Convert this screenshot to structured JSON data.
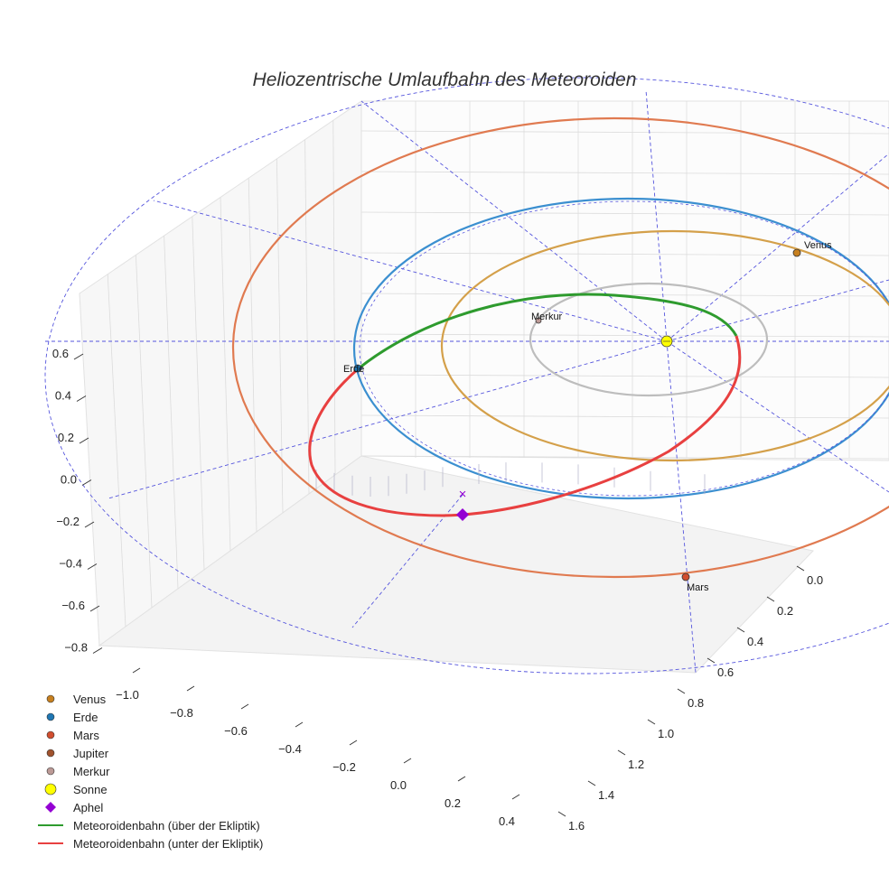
{
  "title": "Heliozentrische Umlaufbahn des Meteoroiden",
  "colors": {
    "venus": "#D4A04A",
    "earth": "#3B8FD0",
    "mars": "#E07A50",
    "mercury": "#BDBDBD",
    "meteor_above": "#2E9B2E",
    "meteor_below": "#E84040",
    "sun": "#FFFF00",
    "aphel": "#9400D3",
    "guides": "#5555DD"
  },
  "chart_data": {
    "type": "scatter",
    "projection": "3d",
    "title": "Heliozentrische Umlaufbahn des Meteoroiden",
    "axes": {
      "x": {
        "ticks": [
          "−1.0",
          "−0.8",
          "−0.6",
          "−0.4",
          "−0.2",
          "0.0",
          "0.2",
          "0.4"
        ],
        "range": [
          -1.1,
          0.45
        ]
      },
      "y": {
        "ticks": [
          "0.0",
          "0.2",
          "0.4",
          "0.6",
          "0.8",
          "1.0",
          "1.2",
          "1.4",
          "1.6"
        ],
        "range": [
          -0.05,
          1.65
        ]
      },
      "z": {
        "ticks": [
          "0.6",
          "0.4",
          "0.2",
          "0.0",
          "−0.2",
          "−0.4",
          "−0.6",
          "−0.8"
        ],
        "range": [
          -0.85,
          0.65
        ]
      }
    },
    "planet_labels": [
      {
        "name": "Venus"
      },
      {
        "name": "Erde"
      },
      {
        "name": "Mars"
      },
      {
        "name": "Merkur"
      }
    ],
    "legend": {
      "placement": "bottom-left",
      "entries": [
        {
          "label": "Venus",
          "marker": "circle",
          "color": "#C7801F"
        },
        {
          "label": "Erde",
          "marker": "circle",
          "color": "#1F77B4"
        },
        {
          "label": "Mars",
          "marker": "circle",
          "color": "#D14E2F"
        },
        {
          "label": "Jupiter",
          "marker": "circle",
          "color": "#A0522D"
        },
        {
          "label": "Merkur",
          "marker": "circle",
          "color": "#BC9A96"
        },
        {
          "label": "Sonne",
          "marker": "circle-large",
          "color": "#FFFF00"
        },
        {
          "label": "Aphel",
          "marker": "diamond",
          "color": "#9400D3"
        },
        {
          "label": "Meteoroidenbahn (über der Ekliptik)",
          "marker": "line",
          "color": "#2E9B2E"
        },
        {
          "label": "Meteoroidenbahn (unter der Ekliptik)",
          "marker": "line",
          "color": "#E84040"
        }
      ]
    },
    "grid": true
  }
}
